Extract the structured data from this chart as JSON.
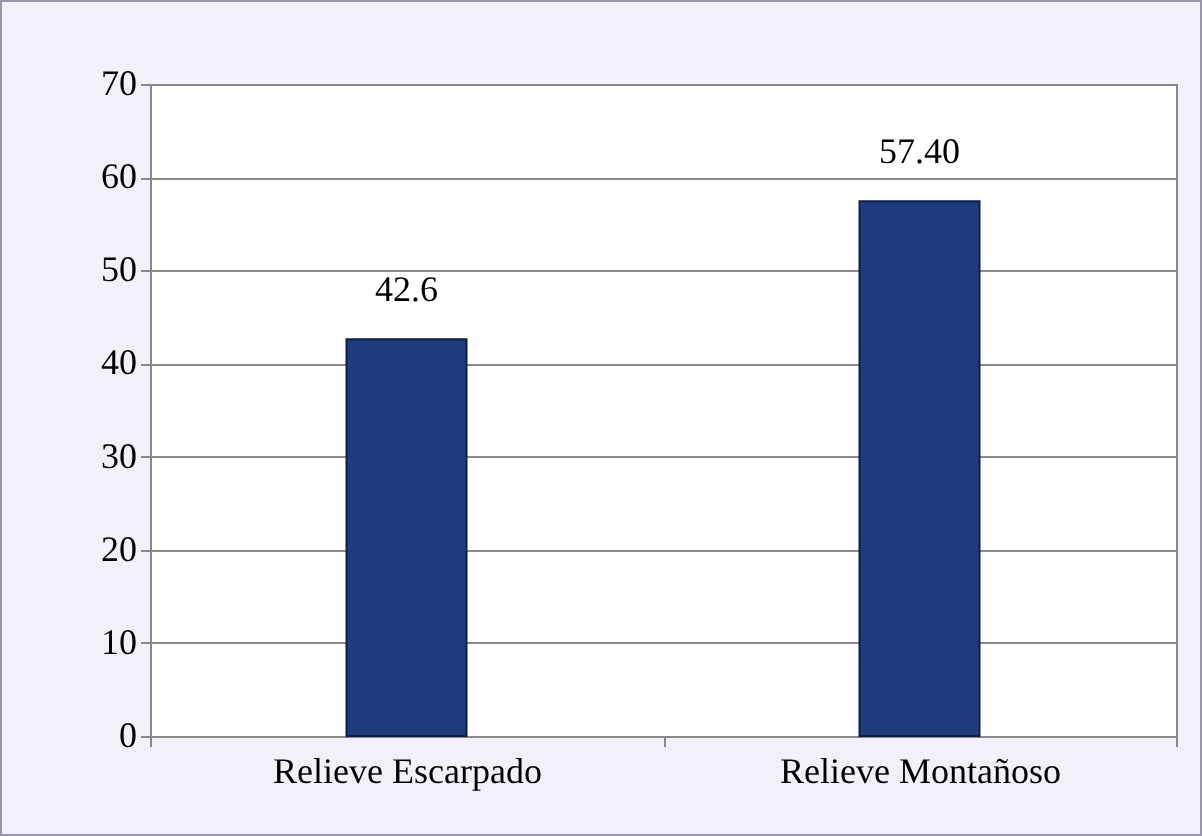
{
  "chart_data": {
    "type": "bar",
    "categories": [
      "Relieve Escarpado",
      "Relieve Montañoso"
    ],
    "values": [
      42.6,
      57.4
    ],
    "value_labels": [
      "42.6",
      "57.40"
    ],
    "color": "#1f3b7d",
    "ylim": [
      0,
      70
    ],
    "yticks": [
      0,
      10,
      20,
      30,
      40,
      50,
      60,
      70
    ],
    "grid": "y"
  }
}
